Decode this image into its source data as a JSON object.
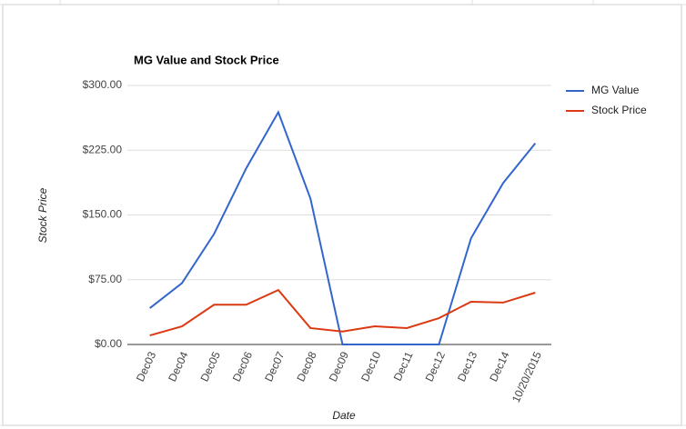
{
  "chart_data": {
    "type": "line",
    "title": "MG Value and Stock Price",
    "x_label": "Date",
    "y_label": "Stock Price",
    "categories": [
      "Dec03",
      "Dec04",
      "Dec05",
      "Dec06",
      "Dec07",
      "Dec08",
      "Dec09",
      "Dec10",
      "Dec11",
      "Dec12",
      "Dec13",
      "Dec14",
      "10/20/2015"
    ],
    "series": [
      {
        "name": "MG Value",
        "color": "#3366cc",
        "values": [
          42,
          71,
          128,
          204,
          269,
          169,
          0,
          0,
          0,
          0,
          123,
          187,
          233
        ]
      },
      {
        "name": "Stock Price",
        "color": "#dc3912",
        "values": [
          10.5,
          21,
          46,
          46,
          63,
          19,
          15,
          21,
          19,
          30.5,
          49.5,
          48.5,
          60
        ]
      }
    ],
    "ylim": [
      0,
      300
    ],
    "yticks": [
      {
        "value": 0,
        "label": "$0.00"
      },
      {
        "value": 75,
        "label": "$75.00"
      },
      {
        "value": 150,
        "label": "$150.00"
      },
      {
        "value": 225,
        "label": "$225.00"
      },
      {
        "value": 300,
        "label": "$300.00"
      }
    ],
    "grid": true,
    "legend": "right"
  }
}
